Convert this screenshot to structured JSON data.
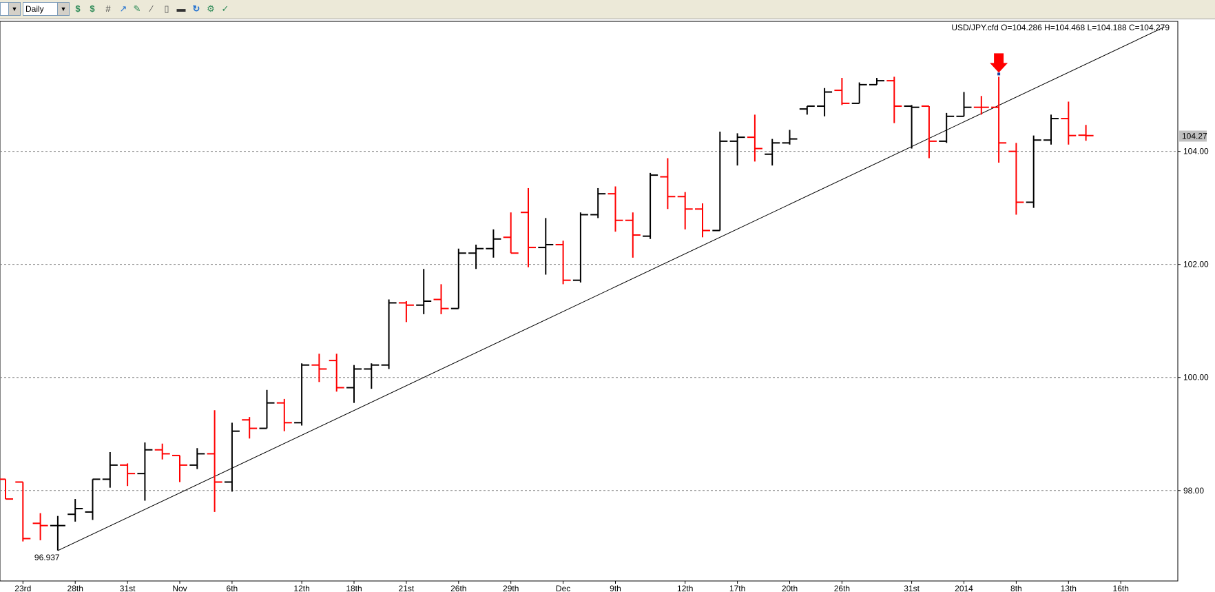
{
  "toolbar": {
    "symbol_select": "",
    "timeframe_select": "Daily",
    "icons": [
      "dollar-icon",
      "dollar-refresh-icon",
      "crosshair-grid-icon",
      "line-chart-icon",
      "draw-tool-icon",
      "line-style-icon",
      "page-icon",
      "printer-icon",
      "refresh-icon",
      "chart-properties-icon",
      "settings-icon"
    ]
  },
  "chart_data": {
    "type": "ohlc",
    "title": "USD/JPY.cfd O=104.286 H=104.468 L=104.188 C=104.279",
    "yticks": [
      "98.00",
      "100.00",
      "102.00",
      "104.00"
    ],
    "ylim": [
      96.4,
      106.3
    ],
    "current_price_label": "104.27",
    "current_price": 104.27,
    "low_label": "96.937",
    "xticks": [
      {
        "label": "23rd",
        "i": 1
      },
      {
        "label": "28th",
        "i": 4
      },
      {
        "label": "31st",
        "i": 7
      },
      {
        "label": "Nov",
        "i": 10
      },
      {
        "label": "6th",
        "i": 13
      },
      {
        "label": "12th",
        "i": 17
      },
      {
        "label": "18th",
        "i": 20
      },
      {
        "label": "21st",
        "i": 23
      },
      {
        "label": "26th",
        "i": 26
      },
      {
        "label": "29th",
        "i": 29
      },
      {
        "label": "Dec",
        "i": 32
      },
      {
        "label": "9th",
        "i": 35
      },
      {
        "label": "12th",
        "i": 39
      },
      {
        "label": "17th",
        "i": 42
      },
      {
        "label": "20th",
        "i": 45
      },
      {
        "label": "26th",
        "i": 48
      },
      {
        "label": "31st",
        "i": 52
      },
      {
        "label": "2014",
        "i": 55
      },
      {
        "label": "8th",
        "i": 58
      },
      {
        "label": "13th",
        "i": 61
      },
      {
        "label": "16th",
        "i": 64
      }
    ],
    "bar_spacing_days": 1,
    "bars": [
      {
        "o": 98.2,
        "h": 98.2,
        "l": 97.85,
        "c": 97.85,
        "dir": "down"
      },
      {
        "o": 98.15,
        "h": 98.15,
        "l": 97.1,
        "c": 97.15,
        "dir": "down"
      },
      {
        "o": 97.42,
        "h": 97.6,
        "l": 97.12,
        "c": 97.38,
        "dir": "down"
      },
      {
        "o": 97.38,
        "h": 97.55,
        "l": 96.94,
        "c": 97.38,
        "dir": "up"
      },
      {
        "o": 97.58,
        "h": 97.85,
        "l": 97.45,
        "c": 97.68,
        "dir": "up"
      },
      {
        "o": 97.62,
        "h": 98.2,
        "l": 97.48,
        "c": 98.2,
        "dir": "up"
      },
      {
        "o": 98.2,
        "h": 98.68,
        "l": 98.05,
        "c": 98.45,
        "dir": "up"
      },
      {
        "o": 98.45,
        "h": 98.48,
        "l": 98.08,
        "c": 98.3,
        "dir": "down"
      },
      {
        "o": 98.3,
        "h": 98.85,
        "l": 97.82,
        "c": 98.72,
        "dir": "up"
      },
      {
        "o": 98.72,
        "h": 98.83,
        "l": 98.55,
        "c": 98.65,
        "dir": "down"
      },
      {
        "o": 98.62,
        "h": 98.62,
        "l": 98.15,
        "c": 98.45,
        "dir": "down"
      },
      {
        "o": 98.45,
        "h": 98.75,
        "l": 98.38,
        "c": 98.65,
        "dir": "up"
      },
      {
        "o": 98.65,
        "h": 99.42,
        "l": 97.62,
        "c": 98.15,
        "dir": "down"
      },
      {
        "o": 98.15,
        "h": 99.2,
        "l": 97.98,
        "c": 99.05,
        "dir": "up"
      },
      {
        "o": 99.25,
        "h": 99.3,
        "l": 98.92,
        "c": 99.1,
        "dir": "down"
      },
      {
        "o": 99.1,
        "h": 99.78,
        "l": 99.1,
        "c": 99.55,
        "dir": "up"
      },
      {
        "o": 99.55,
        "h": 99.62,
        "l": 99.05,
        "c": 99.2,
        "dir": "down"
      },
      {
        "o": 99.2,
        "h": 100.25,
        "l": 99.15,
        "c": 100.22,
        "dir": "up"
      },
      {
        "o": 100.22,
        "h": 100.42,
        "l": 99.92,
        "c": 100.15,
        "dir": "down"
      },
      {
        "o": 100.3,
        "h": 100.42,
        "l": 99.75,
        "c": 99.82,
        "dir": "down"
      },
      {
        "o": 99.82,
        "h": 100.22,
        "l": 99.55,
        "c": 100.15,
        "dir": "up"
      },
      {
        "o": 100.15,
        "h": 100.25,
        "l": 99.8,
        "c": 100.22,
        "dir": "up"
      },
      {
        "o": 100.22,
        "h": 101.38,
        "l": 100.15,
        "c": 101.32,
        "dir": "up"
      },
      {
        "o": 101.32,
        "h": 101.35,
        "l": 100.98,
        "c": 101.28,
        "dir": "down"
      },
      {
        "o": 101.28,
        "h": 101.92,
        "l": 101.12,
        "c": 101.35,
        "dir": "up"
      },
      {
        "o": 101.38,
        "h": 101.65,
        "l": 101.12,
        "c": 101.22,
        "dir": "down"
      },
      {
        "o": 101.22,
        "h": 102.28,
        "l": 101.22,
        "c": 102.2,
        "dir": "up"
      },
      {
        "o": 102.2,
        "h": 102.35,
        "l": 101.92,
        "c": 102.28,
        "dir": "up"
      },
      {
        "o": 102.28,
        "h": 102.62,
        "l": 102.12,
        "c": 102.45,
        "dir": "up"
      },
      {
        "o": 102.48,
        "h": 102.92,
        "l": 102.2,
        "c": 102.2,
        "dir": "down"
      },
      {
        "o": 102.92,
        "h": 103.35,
        "l": 101.95,
        "c": 102.3,
        "dir": "down"
      },
      {
        "o": 102.3,
        "h": 102.82,
        "l": 101.82,
        "c": 102.35,
        "dir": "up"
      },
      {
        "o": 102.35,
        "h": 102.42,
        "l": 101.65,
        "c": 101.72,
        "dir": "down"
      },
      {
        "o": 101.72,
        "h": 102.92,
        "l": 101.68,
        "c": 102.88,
        "dir": "up"
      },
      {
        "o": 102.88,
        "h": 103.35,
        "l": 102.82,
        "c": 103.25,
        "dir": "up"
      },
      {
        "o": 103.25,
        "h": 103.38,
        "l": 102.58,
        "c": 102.78,
        "dir": "down"
      },
      {
        "o": 102.78,
        "h": 102.92,
        "l": 102.12,
        "c": 102.52,
        "dir": "down"
      },
      {
        "o": 102.5,
        "h": 103.62,
        "l": 102.45,
        "c": 103.58,
        "dir": "up"
      },
      {
        "o": 103.55,
        "h": 103.88,
        "l": 102.98,
        "c": 103.2,
        "dir": "down"
      },
      {
        "o": 103.2,
        "h": 103.28,
        "l": 102.62,
        "c": 102.98,
        "dir": "down"
      },
      {
        "o": 102.98,
        "h": 103.08,
        "l": 102.48,
        "c": 102.6,
        "dir": "down"
      },
      {
        "o": 102.6,
        "h": 104.35,
        "l": 102.6,
        "c": 104.18,
        "dir": "up"
      },
      {
        "o": 104.18,
        "h": 104.32,
        "l": 103.75,
        "c": 104.25,
        "dir": "up"
      },
      {
        "o": 104.25,
        "h": 104.65,
        "l": 103.82,
        "c": 104.05,
        "dir": "down"
      },
      {
        "o": 103.95,
        "h": 104.22,
        "l": 103.75,
        "c": 104.15,
        "dir": "up"
      },
      {
        "o": 104.15,
        "h": 104.38,
        "l": 104.12,
        "c": 104.22,
        "dir": "up"
      },
      {
        "o": 104.75,
        "h": 104.8,
        "l": 104.65,
        "c": 104.8,
        "dir": "up"
      },
      {
        "o": 104.8,
        "h": 105.12,
        "l": 104.62,
        "c": 105.05,
        "dir": "up"
      },
      {
        "o": 105.08,
        "h": 105.3,
        "l": 104.82,
        "c": 104.85,
        "dir": "down"
      },
      {
        "o": 104.85,
        "h": 105.22,
        "l": 104.85,
        "c": 105.18,
        "dir": "up"
      },
      {
        "o": 105.18,
        "h": 105.3,
        "l": 105.18,
        "c": 105.25,
        "dir": "up"
      },
      {
        "o": 105.25,
        "h": 105.32,
        "l": 104.5,
        "c": 104.8,
        "dir": "down"
      },
      {
        "o": 104.8,
        "h": 104.82,
        "l": 104.05,
        "c": 104.78,
        "dir": "up"
      },
      {
        "o": 104.8,
        "h": 104.8,
        "l": 103.88,
        "c": 104.18,
        "dir": "down"
      },
      {
        "o": 104.18,
        "h": 104.68,
        "l": 104.15,
        "c": 104.62,
        "dir": "up"
      },
      {
        "o": 104.62,
        "h": 105.05,
        "l": 104.62,
        "c": 104.78,
        "dir": "up"
      },
      {
        "o": 104.78,
        "h": 104.98,
        "l": 104.65,
        "c": 104.78,
        "dir": "down"
      },
      {
        "o": 104.78,
        "h": 105.32,
        "l": 103.8,
        "c": 104.15,
        "dir": "down"
      },
      {
        "o": 104.0,
        "h": 104.15,
        "l": 102.88,
        "c": 103.1,
        "dir": "down"
      },
      {
        "o": 103.1,
        "h": 104.28,
        "l": 103.0,
        "c": 104.2,
        "dir": "up"
      },
      {
        "o": 104.2,
        "h": 104.65,
        "l": 104.12,
        "c": 104.58,
        "dir": "up"
      },
      {
        "o": 104.58,
        "h": 104.88,
        "l": 104.12,
        "c": 104.28,
        "dir": "down"
      },
      {
        "o": 104.286,
        "h": 104.468,
        "l": 104.188,
        "c": 104.279,
        "dir": "down"
      }
    ],
    "trendline": {
      "from": {
        "i": 3,
        "price": 96.937
      },
      "to": {
        "i": 66.5,
        "price": 106.2
      }
    },
    "signal_arrow": {
      "i": 57,
      "color": "#ff0000"
    },
    "colors": {
      "up": "#000000",
      "down": "#ff0000",
      "grid": "#808080",
      "trend": "#000000",
      "price_label_bg": "#c0c0c0"
    }
  }
}
